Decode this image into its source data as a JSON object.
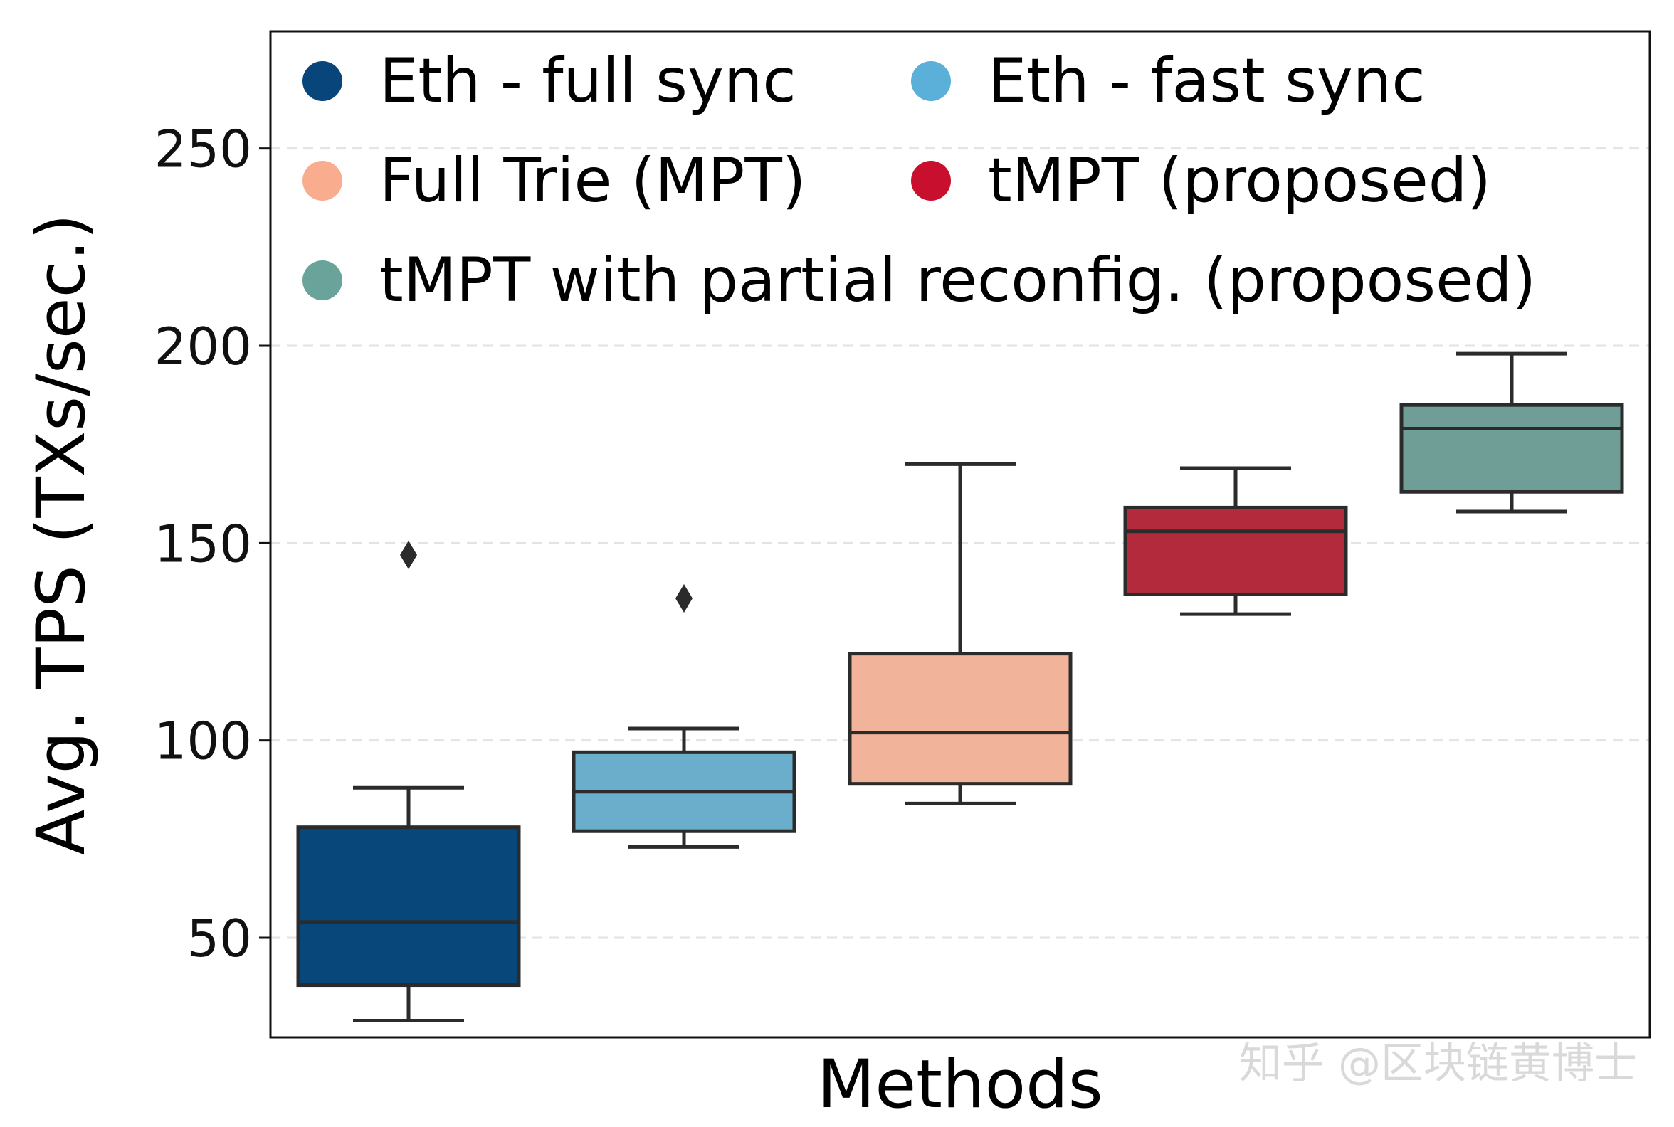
{
  "chart_data": {
    "type": "box",
    "title": "",
    "xlabel": "Methods",
    "ylabel": "Avg. TPS (TXs/sec.)",
    "ylim": [
      25,
      280
    ],
    "yticks": [
      50,
      100,
      150,
      200,
      250
    ],
    "grid": "horizontal-dashed",
    "legend": {
      "placement": "top-left",
      "entries": [
        {
          "label": "Eth - full sync",
          "color": "#08457a"
        },
        {
          "label": "Eth - fast sync",
          "color": "#5ab0d8"
        },
        {
          "label": "Full Trie (MPT)",
          "color": "#f9ac8e"
        },
        {
          "label": "tMPT (proposed)",
          "color": "#c8102e"
        },
        {
          "label": "tMPT with partial reconfig. (proposed)",
          "color": "#6aa39a"
        }
      ]
    },
    "series": [
      {
        "name": "Eth - full sync",
        "fill": "#08477a",
        "whisker_low": 29,
        "q1": 38,
        "median": 54,
        "q3": 78,
        "whisker_high": 88,
        "outliers": [
          147
        ]
      },
      {
        "name": "Eth - fast sync",
        "fill": "#6aaecb",
        "whisker_low": 73,
        "q1": 77,
        "median": 87,
        "q3": 97,
        "whisker_high": 103,
        "outliers": [
          136
        ]
      },
      {
        "name": "Full Trie (MPT)",
        "fill": "#f2b39b",
        "whisker_low": 84,
        "q1": 89,
        "median": 102,
        "q3": 122,
        "whisker_high": 170,
        "outliers": []
      },
      {
        "name": "tMPT (proposed)",
        "fill": "#b22a3c",
        "whisker_low": 132,
        "q1": 137,
        "median": 153,
        "q3": 159,
        "whisker_high": 169,
        "outliers": []
      },
      {
        "name": "tMPT with partial reconfig. (proposed)",
        "fill": "#6f9e97",
        "whisker_low": 158,
        "q1": 163,
        "median": 179,
        "q3": 185,
        "whisker_high": 198,
        "outliers": []
      }
    ]
  },
  "watermark": "知乎 @区块链黄博士"
}
